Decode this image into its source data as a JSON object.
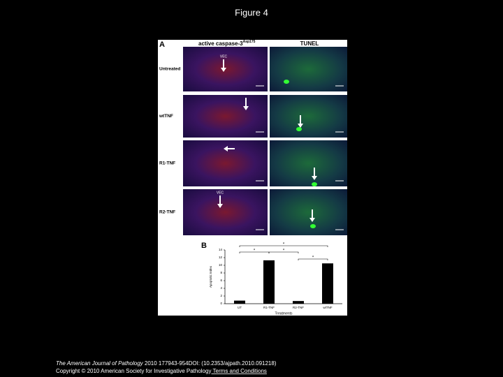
{
  "title": "Figure 4",
  "figure": {
    "panel_a_label": "A",
    "column_headers": [
      "active caspase-3",
      "TUNEL"
    ],
    "column_header_superscript": "Asp175",
    "row_labels": [
      "Untreated",
      "wtTNF",
      "R1-TNF",
      "R2-TNF"
    ],
    "vec_labels": [
      "VEC",
      "VEC"
    ],
    "panel_b_label": "B",
    "significance": [
      "*",
      "*",
      "*",
      "*"
    ]
  },
  "chart_data": {
    "type": "bar",
    "y_label": "Apoptotic Index",
    "x_label": "Treatments",
    "categories": [
      "UT",
      "R1-TNF",
      "R2-TNF",
      "wtTNF"
    ],
    "values": [
      0.8,
      11.3,
      0.7,
      10.5
    ],
    "color": "#000000",
    "ylim": [
      0,
      14
    ],
    "yticks": [
      0,
      2,
      4,
      6,
      8,
      10,
      12,
      14
    ]
  },
  "footer": {
    "journal": "The American Journal of Pathology",
    "citation": " 2010 177943-954DOI: (10.2353/ajpath.2010.091218)",
    "copyright": "Copyright © 2010 American Society for Investigative Pathology",
    "link": " Terms and Conditions"
  }
}
